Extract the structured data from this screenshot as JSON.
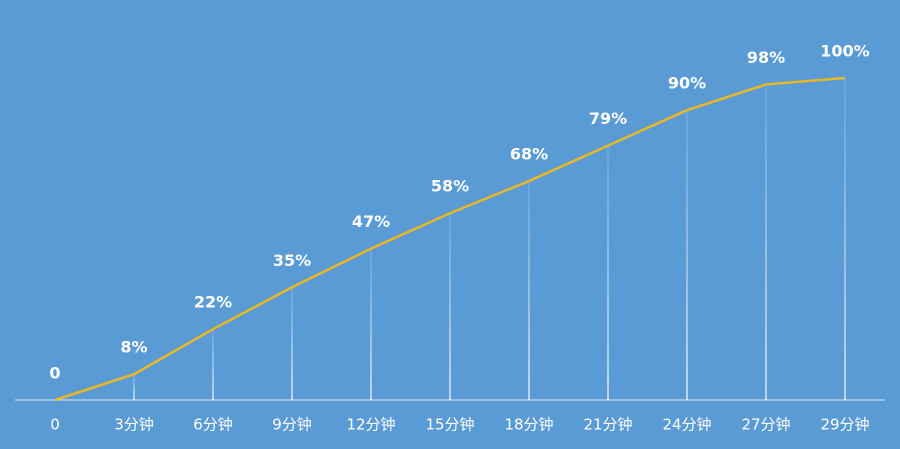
{
  "chart_data": {
    "type": "line",
    "categories": [
      "0",
      "3分钟",
      "6分钟",
      "9分钟",
      "12分钟",
      "15分钟",
      "18分钟",
      "21分钟",
      "24分钟",
      "27分钟",
      "29分钟"
    ],
    "values": [
      0,
      8,
      22,
      35,
      47,
      58,
      68,
      79,
      90,
      98,
      100
    ],
    "value_labels": [
      "0",
      "8%",
      "22%",
      "35%",
      "47%",
      "58%",
      "68%",
      "79%",
      "90%",
      "98%",
      "100%"
    ],
    "color": "#e9b824",
    "ylim": [
      0,
      100
    ]
  }
}
